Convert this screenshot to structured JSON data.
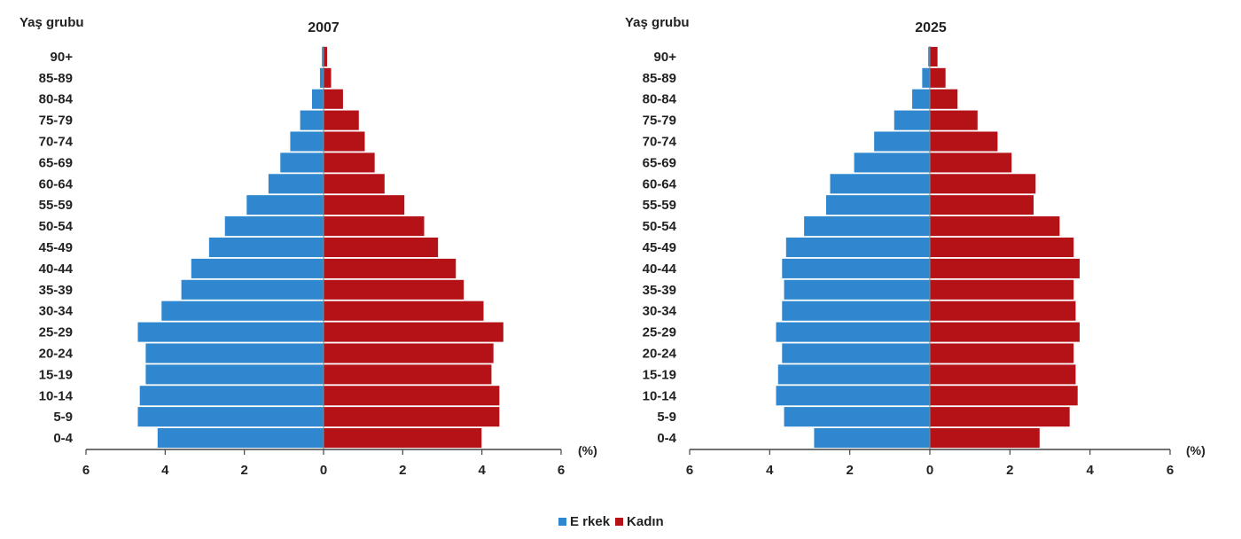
{
  "colors": {
    "male": "#2e87cf",
    "female": "#b51218",
    "axis": "#444444",
    "bar_separator": "#ffffff"
  },
  "legend": {
    "male_label": "E rkek",
    "female_label": "Kadın"
  },
  "chart_data": [
    {
      "type": "bar",
      "orientation": "horizontal-population-pyramid",
      "title": "2007",
      "ylabel": "Yaş grubu",
      "xunit": "(%)",
      "xlim": [
        -6,
        6
      ],
      "xticks": [
        "6",
        "4",
        "2",
        "0",
        "2",
        "4",
        "6"
      ],
      "categories": [
        "0-4",
        "5-9",
        "10-14",
        "15-19",
        "20-24",
        "25-29",
        "30-34",
        "35-39",
        "40-44",
        "45-49",
        "50-54",
        "55-59",
        "60-64",
        "65-69",
        "70-74",
        "75-79",
        "80-84",
        "85-89",
        "90+"
      ],
      "series": [
        {
          "name": "E rkek",
          "values": [
            4.2,
            4.7,
            4.65,
            4.5,
            4.5,
            4.7,
            4.1,
            3.6,
            3.35,
            2.9,
            2.5,
            1.95,
            1.4,
            1.1,
            0.85,
            0.6,
            0.3,
            0.1,
            0.05
          ]
        },
        {
          "name": "Kadın",
          "values": [
            4.0,
            4.45,
            4.45,
            4.25,
            4.3,
            4.55,
            4.05,
            3.55,
            3.35,
            2.9,
            2.55,
            2.05,
            1.55,
            1.3,
            1.05,
            0.9,
            0.5,
            0.2,
            0.1
          ]
        }
      ]
    },
    {
      "type": "bar",
      "orientation": "horizontal-population-pyramid",
      "title": "2025",
      "ylabel": "Yaş grubu",
      "xunit": "(%)",
      "xlim": [
        -6,
        6
      ],
      "xticks": [
        "6",
        "4",
        "2",
        "0",
        "2",
        "4",
        "6"
      ],
      "categories": [
        "0-4",
        "5-9",
        "10-14",
        "15-19",
        "20-24",
        "25-29",
        "30-34",
        "35-39",
        "40-44",
        "45-49",
        "50-54",
        "55-59",
        "60-64",
        "65-69",
        "70-74",
        "75-79",
        "80-84",
        "85-89",
        "90+"
      ],
      "series": [
        {
          "name": "E rkek",
          "values": [
            2.9,
            3.65,
            3.85,
            3.8,
            3.7,
            3.85,
            3.7,
            3.65,
            3.7,
            3.6,
            3.15,
            2.6,
            2.5,
            1.9,
            1.4,
            0.9,
            0.45,
            0.2,
            0.05
          ]
        },
        {
          "name": "Kadın",
          "values": [
            2.75,
            3.5,
            3.7,
            3.65,
            3.6,
            3.75,
            3.65,
            3.6,
            3.75,
            3.6,
            3.25,
            2.6,
            2.65,
            2.05,
            1.7,
            1.2,
            0.7,
            0.4,
            0.2
          ]
        }
      ]
    }
  ]
}
